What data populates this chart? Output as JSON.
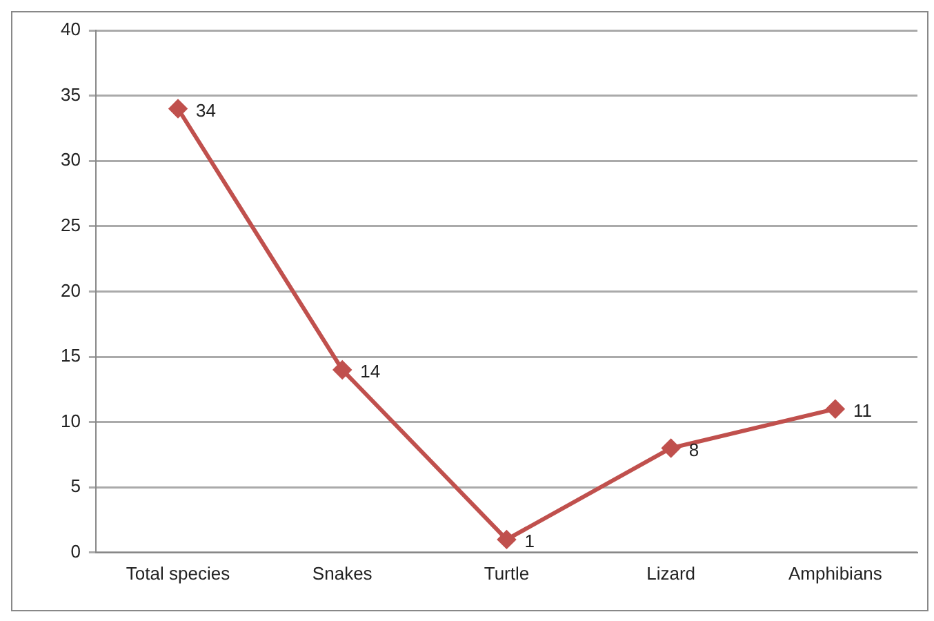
{
  "chart_data": {
    "type": "line",
    "categories": [
      "Total species",
      "Snakes",
      "Turtle",
      "Lizard",
      "Amphibians"
    ],
    "values": [
      34,
      14,
      1,
      8,
      11
    ],
    "color": "#c0504d",
    "ylim": [
      0,
      40
    ],
    "yticks": [
      0,
      5,
      10,
      15,
      20,
      25,
      30,
      35,
      40
    ],
    "grid": "y",
    "marker": "diamond",
    "data_labels": true
  }
}
